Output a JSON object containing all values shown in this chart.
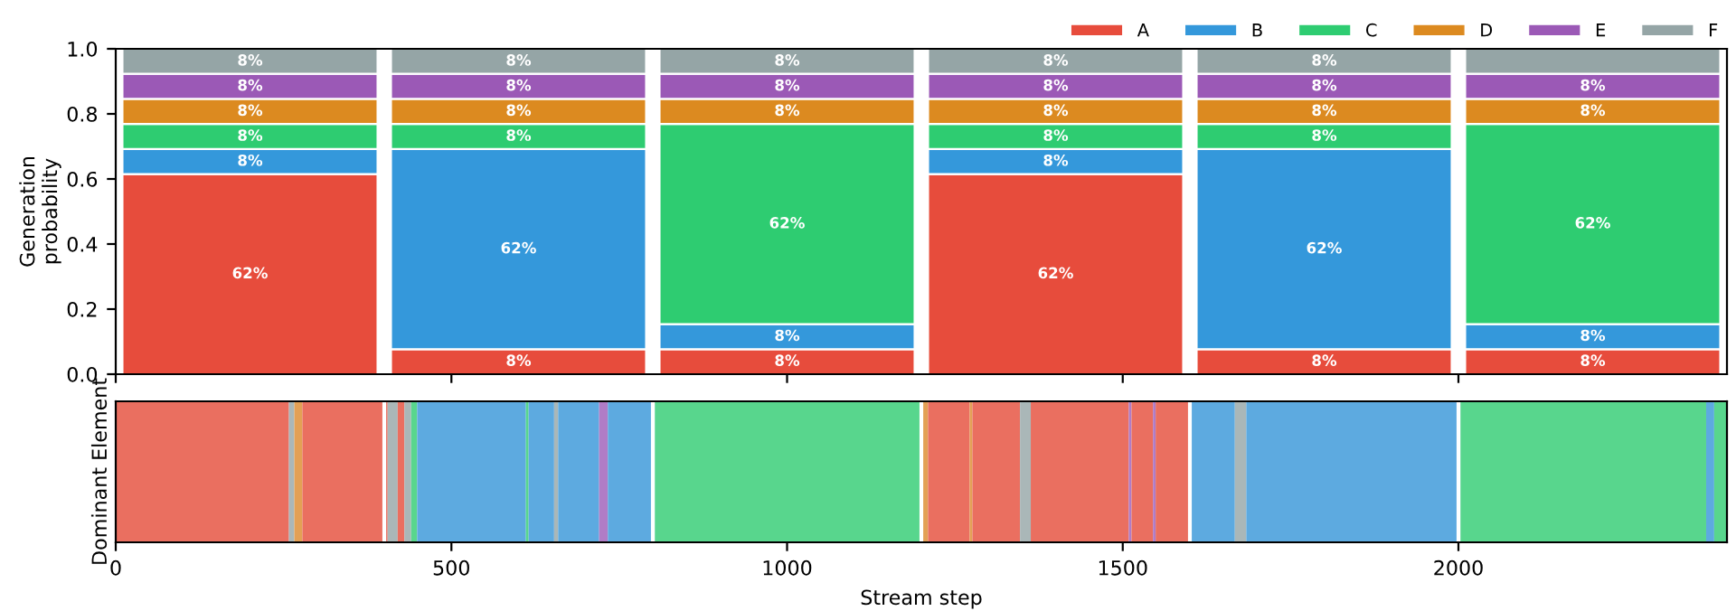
{
  "chart_data": [
    {
      "type": "bar",
      "ylabel": "Generation\nprobability",
      "stacked": true,
      "legend": "top right",
      "tick_labels": "y",
      "x": [
        200,
        600,
        1000,
        1400,
        1800,
        2200
      ],
      "xlim": [
        0,
        2400
      ],
      "xticks": [
        {
          "value": 0,
          "label": null
        },
        {
          "value": 500,
          "label": null
        },
        {
          "value": 1000,
          "label": null
        },
        {
          "value": 1500,
          "label": null
        },
        {
          "value": 2000,
          "label": null
        }
      ],
      "ylim": [
        0,
        1
      ],
      "yticks": [
        {
          "value": 0,
          "label": "0.0"
        },
        {
          "value": 0.2,
          "label": "0.2"
        },
        {
          "value": 0.4,
          "label": "0.4"
        },
        {
          "value": 0.6,
          "label": "0.6"
        },
        {
          "value": 0.8,
          "label": "0.8"
        },
        {
          "value": 1,
          "label": "1.0"
        }
      ],
      "series": [
        {
          "name": "A",
          "color": "#e74c3c",
          "values": [
            0.615,
            0.077,
            0.077,
            0.615,
            0.077,
            0.077
          ],
          "value_labels": [
            "62%",
            "8%",
            "8%",
            "62%",
            "8%",
            "8%"
          ]
        },
        {
          "name": "B",
          "color": "#3498db",
          "values": [
            0.077,
            0.615,
            0.077,
            0.077,
            0.615,
            0.077
          ],
          "value_labels": [
            "8%",
            "62%",
            "8%",
            "8%",
            "62%",
            "8%"
          ]
        },
        {
          "name": "C",
          "color": "#2ecc71",
          "values": [
            0.077,
            0.077,
            0.615,
            0.077,
            0.077,
            0.615
          ],
          "value_labels": [
            "8%",
            "8%",
            "62%",
            "8%",
            "8%",
            "62%"
          ]
        },
        {
          "name": "D",
          "color": "#dc8a20",
          "values": [
            0.077,
            0.077,
            0.077,
            0.077,
            0.077,
            0.077
          ],
          "value_labels": [
            "8%",
            "8%",
            "8%",
            "8%",
            "8%",
            "8%"
          ]
        },
        {
          "name": "E",
          "color": "#9b59b6",
          "values": [
            0.077,
            0.077,
            0.077,
            0.077,
            0.077,
            0.077
          ],
          "value_labels": [
            "8%",
            "8%",
            "8%",
            "8%",
            "8%",
            "8%"
          ]
        },
        {
          "name": "F",
          "color": "#95a5a6",
          "values": [
            0.077,
            0.077,
            0.077,
            0.077,
            0.077,
            0.077
          ],
          "value_labels": [
            "8%",
            "8%",
            "8%",
            "8%",
            "8%",
            null
          ]
        }
      ]
    },
    {
      "type": "bar",
      "orientation": "horizontal",
      "stacked": true,
      "categories": [
        null
      ],
      "tick_labels": "x",
      "xlabel": "Stream step",
      "ylabel": "Dominant Element",
      "xlim": [
        0,
        2400
      ],
      "xticks": [
        0,
        500,
        1000,
        1500,
        2000
      ],
      "ref_lines": [
        {
          "axis": "x",
          "value": 400,
          "color": "#ffffff"
        },
        {
          "axis": "x",
          "value": 800,
          "color": "#ffffff"
        },
        {
          "axis": "x",
          "value": 1200,
          "color": "#ffffff"
        },
        {
          "axis": "x",
          "value": 1600,
          "color": "#ffffff"
        },
        {
          "axis": "x",
          "value": 2000,
          "color": "#ffffff"
        }
      ],
      "series": [
        {
          "color": "#ea6f60",
          "values": [
            258
          ]
        },
        {
          "color": "#aab7b8",
          "values": [
            8
          ]
        },
        {
          "color": "#e3a055",
          "values": [
            12
          ]
        },
        {
          "color": "#ea6f60",
          "values": [
            127
          ]
        },
        {
          "color": "#aab7b8",
          "values": [
            15
          ]
        },
        {
          "color": "#ea6f60",
          "values": [
            10
          ]
        },
        {
          "color": "#aab7b8",
          "values": [
            10
          ]
        },
        {
          "color": "#58d68d",
          "values": [
            9
          ]
        },
        {
          "color": "#5daae0",
          "values": [
            162
          ]
        },
        {
          "color": "#58d68d",
          "values": [
            4
          ]
        },
        {
          "color": "#5daae0",
          "values": [
            38
          ]
        },
        {
          "color": "#aab7b8",
          "values": [
            6
          ]
        },
        {
          "color": "#5daae0",
          "values": [
            61
          ]
        },
        {
          "color": "#b07cc6",
          "values": [
            13
          ]
        },
        {
          "color": "#5daae0",
          "values": [
            70
          ]
        },
        {
          "color": "#58d68d",
          "values": [
            399
          ]
        },
        {
          "color": "#e3a055",
          "values": [
            8
          ]
        },
        {
          "color": "#ea6f60",
          "values": [
            62
          ]
        },
        {
          "color": "#e3a055",
          "values": [
            4
          ]
        },
        {
          "color": "#ea6f60",
          "values": [
            71
          ]
        },
        {
          "color": "#aab7b8",
          "values": [
            16
          ]
        },
        {
          "color": "#ea6f60",
          "values": [
            146
          ]
        },
        {
          "color": "#b07cc6",
          "values": [
            4
          ]
        },
        {
          "color": "#ea6f60",
          "values": [
            32
          ]
        },
        {
          "color": "#b07cc6",
          "values": [
            4
          ]
        },
        {
          "color": "#ea6f60",
          "values": [
            53
          ]
        },
        {
          "color": "#5daae0",
          "values": [
            65
          ]
        },
        {
          "color": "#aab7b8",
          "values": [
            17
          ]
        },
        {
          "color": "#5daae0",
          "values": [
            319
          ]
        },
        {
          "color": "#58d68d",
          "values": [
            366
          ]
        },
        {
          "color": "#5daae0",
          "values": [
            12
          ]
        },
        {
          "color": "#58d68d",
          "values": [
            19
          ]
        }
      ]
    }
  ]
}
